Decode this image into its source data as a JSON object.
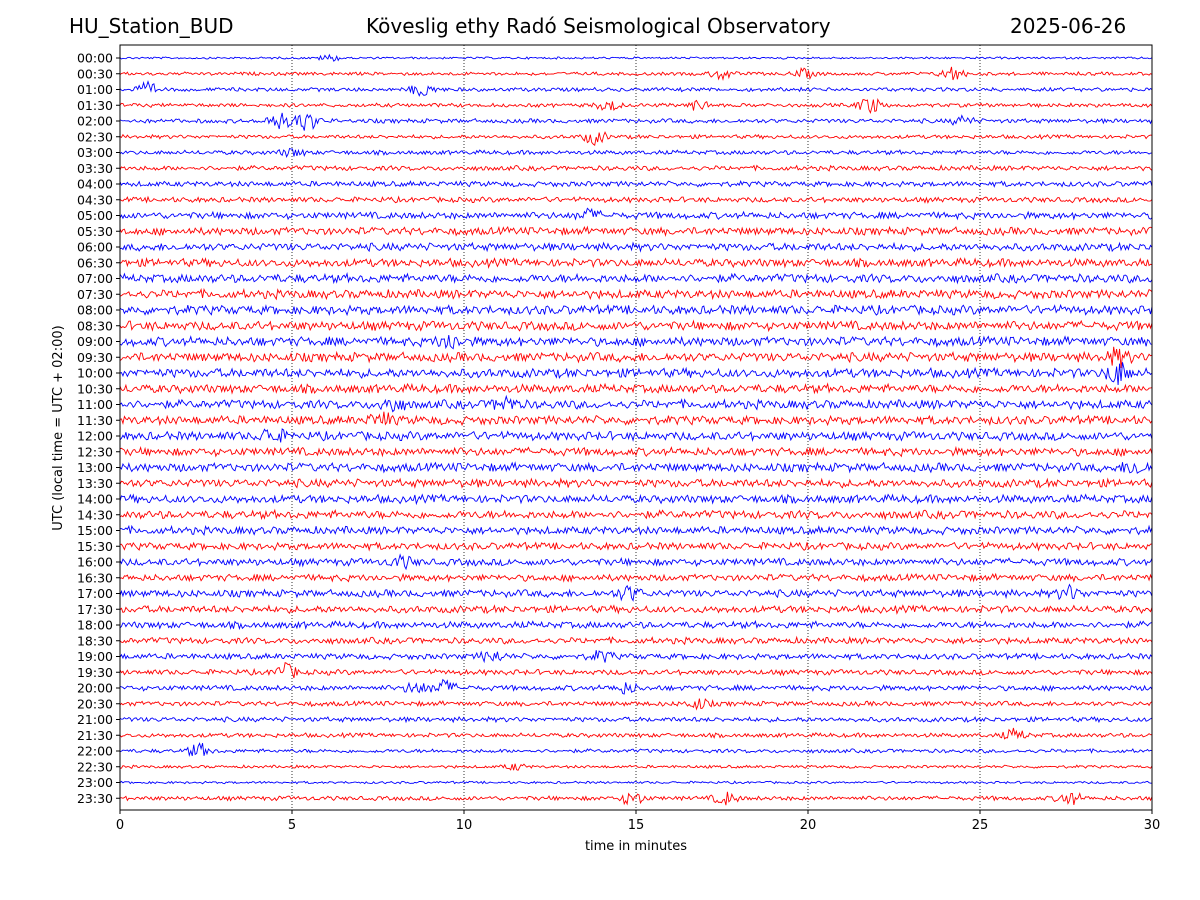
{
  "header": {
    "station": "HU_Station_BUD",
    "observatory": "Köveslig ethy Radó Seismological Observatory",
    "date": "2025-06-26"
  },
  "chart_data": {
    "type": "line",
    "title": "Köveslig ethy Radó Seismological Observatory",
    "xlabel": "time in minutes",
    "ylabel": "UTC (local time = UTC + 02:00)",
    "xlim": [
      0,
      30
    ],
    "xticks": [
      0,
      5,
      10,
      15,
      20,
      25,
      30
    ],
    "grid": "vertical dotted at 5-minute ticks",
    "trace_colors": [
      "#0000ff",
      "#ff0000"
    ],
    "rows": [
      {
        "label": "00:00",
        "amp": 0.22,
        "events": [
          [
            6.1,
            0.6
          ]
        ]
      },
      {
        "label": "00:30",
        "amp": 0.35,
        "events": [
          [
            17.5,
            1.0
          ],
          [
            19.9,
            0.8
          ],
          [
            24.2,
            1.3
          ]
        ]
      },
      {
        "label": "01:00",
        "amp": 0.4,
        "events": [
          [
            0.8,
            1.1
          ],
          [
            8.8,
            1.2
          ]
        ]
      },
      {
        "label": "01:30",
        "amp": 0.4,
        "events": [
          [
            14.2,
            1.0
          ],
          [
            16.8,
            0.9
          ],
          [
            21.8,
            1.5
          ]
        ]
      },
      {
        "label": "02:00",
        "amp": 0.45,
        "events": [
          [
            4.6,
            1.6
          ],
          [
            5.4,
            1.9
          ],
          [
            24.5,
            0.8
          ]
        ]
      },
      {
        "label": "02:30",
        "amp": 0.4,
        "events": [
          [
            13.8,
            1.3
          ]
        ]
      },
      {
        "label": "03:00",
        "amp": 0.45,
        "events": [
          [
            5.0,
            0.7
          ]
        ]
      },
      {
        "label": "03:30",
        "amp": 0.5,
        "events": []
      },
      {
        "label": "04:00",
        "amp": 0.55,
        "events": []
      },
      {
        "label": "04:30",
        "amp": 0.55,
        "events": []
      },
      {
        "label": "05:00",
        "amp": 0.7,
        "events": [
          [
            13.6,
            0.9
          ]
        ]
      },
      {
        "label": "05:30",
        "amp": 0.8,
        "events": []
      },
      {
        "label": "06:00",
        "amp": 0.8,
        "events": []
      },
      {
        "label": "06:30",
        "amp": 0.85,
        "events": []
      },
      {
        "label": "07:00",
        "amp": 0.9,
        "events": []
      },
      {
        "label": "07:30",
        "amp": 0.9,
        "events": []
      },
      {
        "label": "08:00",
        "amp": 0.95,
        "events": []
      },
      {
        "label": "08:30",
        "amp": 0.95,
        "events": []
      },
      {
        "label": "09:00",
        "amp": 0.95,
        "events": [
          [
            9.6,
            1.3
          ]
        ]
      },
      {
        "label": "09:30",
        "amp": 0.95,
        "events": [
          [
            29.0,
            1.4
          ]
        ]
      },
      {
        "label": "10:00",
        "amp": 0.95,
        "events": [
          [
            29.0,
            2.0
          ]
        ]
      },
      {
        "label": "10:30",
        "amp": 0.9,
        "events": []
      },
      {
        "label": "11:00",
        "amp": 0.9,
        "events": [
          [
            7.9,
            1.2
          ],
          [
            11.2,
            1.2
          ]
        ]
      },
      {
        "label": "11:30",
        "amp": 0.9,
        "events": [
          [
            7.6,
            1.1
          ]
        ]
      },
      {
        "label": "12:00",
        "amp": 0.9,
        "events": [
          [
            4.4,
            1.3
          ]
        ]
      },
      {
        "label": "12:30",
        "amp": 0.85,
        "events": []
      },
      {
        "label": "13:00",
        "amp": 0.9,
        "events": [
          [
            29.5,
            1.1
          ]
        ]
      },
      {
        "label": "13:30",
        "amp": 0.85,
        "events": []
      },
      {
        "label": "14:00",
        "amp": 0.85,
        "events": []
      },
      {
        "label": "14:30",
        "amp": 0.85,
        "events": []
      },
      {
        "label": "15:00",
        "amp": 0.8,
        "events": []
      },
      {
        "label": "15:30",
        "amp": 0.75,
        "events": []
      },
      {
        "label": "16:00",
        "amp": 0.75,
        "events": [
          [
            8.2,
            0.9
          ]
        ]
      },
      {
        "label": "16:30",
        "amp": 0.7,
        "events": []
      },
      {
        "label": "17:00",
        "amp": 0.75,
        "events": [
          [
            14.8,
            1.2
          ],
          [
            27.6,
            1.1
          ]
        ]
      },
      {
        "label": "17:30",
        "amp": 0.75,
        "events": []
      },
      {
        "label": "18:00",
        "amp": 0.7,
        "events": []
      },
      {
        "label": "18:30",
        "amp": 0.65,
        "events": []
      },
      {
        "label": "19:00",
        "amp": 0.6,
        "events": [
          [
            10.8,
            1.0
          ],
          [
            14.0,
            0.9
          ]
        ]
      },
      {
        "label": "19:30",
        "amp": 0.55,
        "events": [
          [
            4.8,
            1.4
          ]
        ]
      },
      {
        "label": "20:00",
        "amp": 0.55,
        "events": [
          [
            8.6,
            1.0
          ],
          [
            9.4,
            1.3
          ],
          [
            14.7,
            0.9
          ]
        ]
      },
      {
        "label": "20:30",
        "amp": 0.5,
        "events": [
          [
            16.8,
            0.9
          ]
        ]
      },
      {
        "label": "21:00",
        "amp": 0.5,
        "events": []
      },
      {
        "label": "21:30",
        "amp": 0.45,
        "events": [
          [
            26.0,
            1.0
          ]
        ]
      },
      {
        "label": "22:00",
        "amp": 0.4,
        "events": [
          [
            2.3,
            1.3
          ]
        ]
      },
      {
        "label": "22:30",
        "amp": 0.3,
        "events": [
          [
            11.5,
            0.6
          ]
        ]
      },
      {
        "label": "23:00",
        "amp": 0.25,
        "events": []
      },
      {
        "label": "23:30",
        "amp": 0.45,
        "events": [
          [
            14.9,
            1.2
          ],
          [
            17.6,
            1.1
          ],
          [
            27.6,
            1.2
          ]
        ]
      }
    ]
  }
}
